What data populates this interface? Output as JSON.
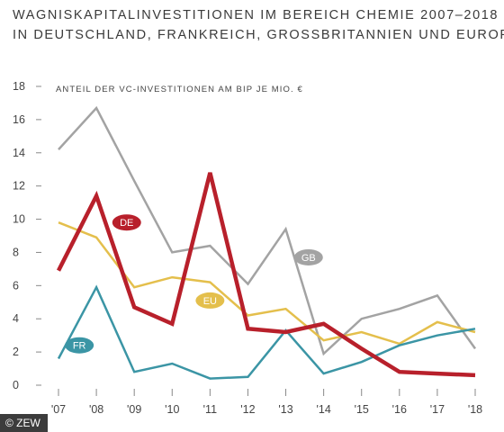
{
  "title": {
    "line1": "WAGNISKAPITALINVESTITIONEN IM BEREICH CHEMIE 2007–2018",
    "line2": "IN DEUTSCHLAND, FRANKREICH, GROSSBRITANNIEN UND EUROPA"
  },
  "credit": "© ZEW",
  "chart_data": {
    "type": "line",
    "ylabel": "ANTEIL DER VC-INVESTITIONEN AM BIP JE MIO. €",
    "categories": [
      "'07",
      "'08",
      "'09",
      "'10",
      "'11",
      "'12",
      "'13",
      "'14",
      "'15",
      "'16",
      "'17",
      "'18"
    ],
    "ylim": [
      0,
      18
    ],
    "yticks": [
      0,
      2,
      4,
      6,
      8,
      10,
      12,
      14,
      16,
      18
    ],
    "grid": false,
    "series": [
      {
        "name": "GB",
        "color": "#a3a3a3",
        "width": 2.5,
        "values": [
          14.2,
          16.7,
          12.3,
          8.0,
          8.4,
          6.1,
          9.4,
          1.9,
          4.0,
          4.6,
          5.4,
          2.2
        ]
      },
      {
        "name": "EU",
        "color": "#e4bf4c",
        "width": 2.5,
        "values": [
          9.8,
          8.9,
          5.9,
          6.5,
          6.2,
          4.2,
          4.6,
          2.7,
          3.2,
          2.5,
          3.8,
          3.2
        ]
      },
      {
        "name": "FR",
        "color": "#3b95a5",
        "width": 2.5,
        "values": [
          1.6,
          5.9,
          0.8,
          1.3,
          0.4,
          0.5,
          3.3,
          0.7,
          1.4,
          2.4,
          3.0,
          3.4
        ]
      },
      {
        "name": "DE",
        "color": "#b8202b",
        "width": 4.5,
        "values": [
          6.9,
          11.4,
          4.7,
          3.7,
          12.8,
          3.4,
          3.2,
          3.7,
          2.2,
          0.8,
          0.7,
          0.6
        ]
      }
    ],
    "labels": [
      {
        "series": "DE",
        "text": "DE",
        "x": 1.8,
        "y": 9.8
      },
      {
        "series": "GB",
        "text": "GB",
        "x": 6.6,
        "y": 7.7
      },
      {
        "series": "EU",
        "text": "EU",
        "x": 4.0,
        "y": 5.1
      },
      {
        "series": "FR",
        "text": "FR",
        "x": 0.55,
        "y": 2.4
      }
    ]
  }
}
